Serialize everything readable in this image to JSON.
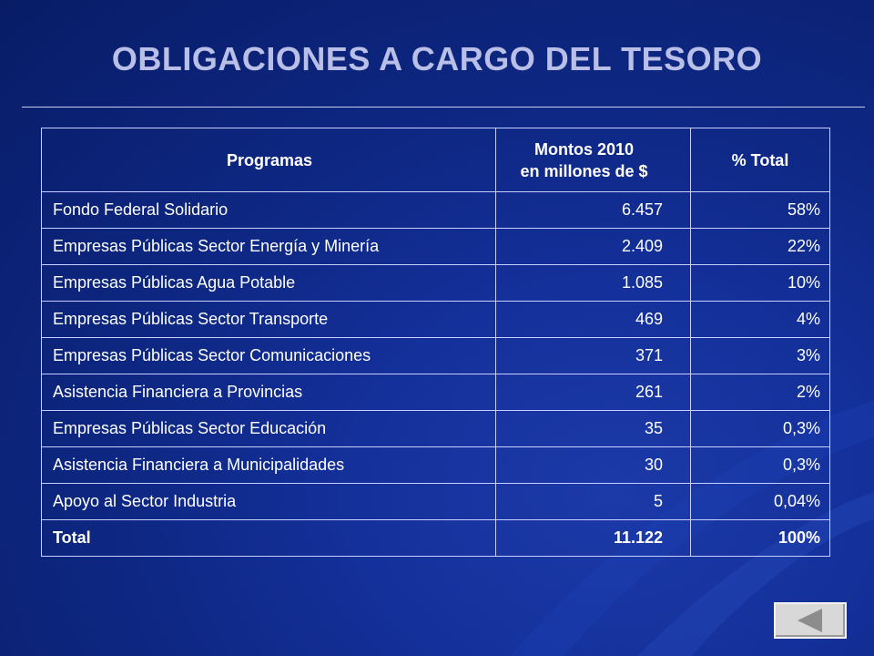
{
  "slide": {
    "title": "OBLIGACIONES A CARGO DEL TESORO"
  },
  "table": {
    "headers": {
      "programas": "Programas",
      "montos_line1": "Montos 2010",
      "montos_line2": "en millones de $",
      "percent": "% Total"
    },
    "rows": [
      {
        "programa": "Fondo Federal Solidario",
        "monto": "6.457",
        "pct": "58%"
      },
      {
        "programa": "Empresas Públicas Sector Energía y Minería",
        "monto": "2.409",
        "pct": "22%"
      },
      {
        "programa": "Empresas Públicas Agua Potable",
        "monto": "1.085",
        "pct": "10%"
      },
      {
        "programa": "Empresas Públicas Sector Transporte",
        "monto": "469",
        "pct": "4%"
      },
      {
        "programa": "Empresas Públicas Sector Comunicaciones",
        "monto": "371",
        "pct": "3%"
      },
      {
        "programa": "Asistencia Financiera a Provincias",
        "monto": "261",
        "pct": "2%"
      },
      {
        "programa": "Empresas Públicas Sector Educación",
        "monto": "35",
        "pct": "0,3%"
      },
      {
        "programa": "Asistencia Financiera a Municipalidades",
        "monto": "30",
        "pct": "0,3%"
      },
      {
        "programa": "Apoyo al Sector Industria",
        "monto": "5",
        "pct": "0,04%"
      }
    ],
    "total": {
      "programa": "Total",
      "monto": "11.122",
      "pct": "100%"
    }
  },
  "navigation": {
    "back_icon": "triangle-left-icon"
  },
  "colors": {
    "background": "#0d2680",
    "title": "#b9bfe6",
    "table_text": "#ffffff",
    "border": "#c8cfff"
  }
}
